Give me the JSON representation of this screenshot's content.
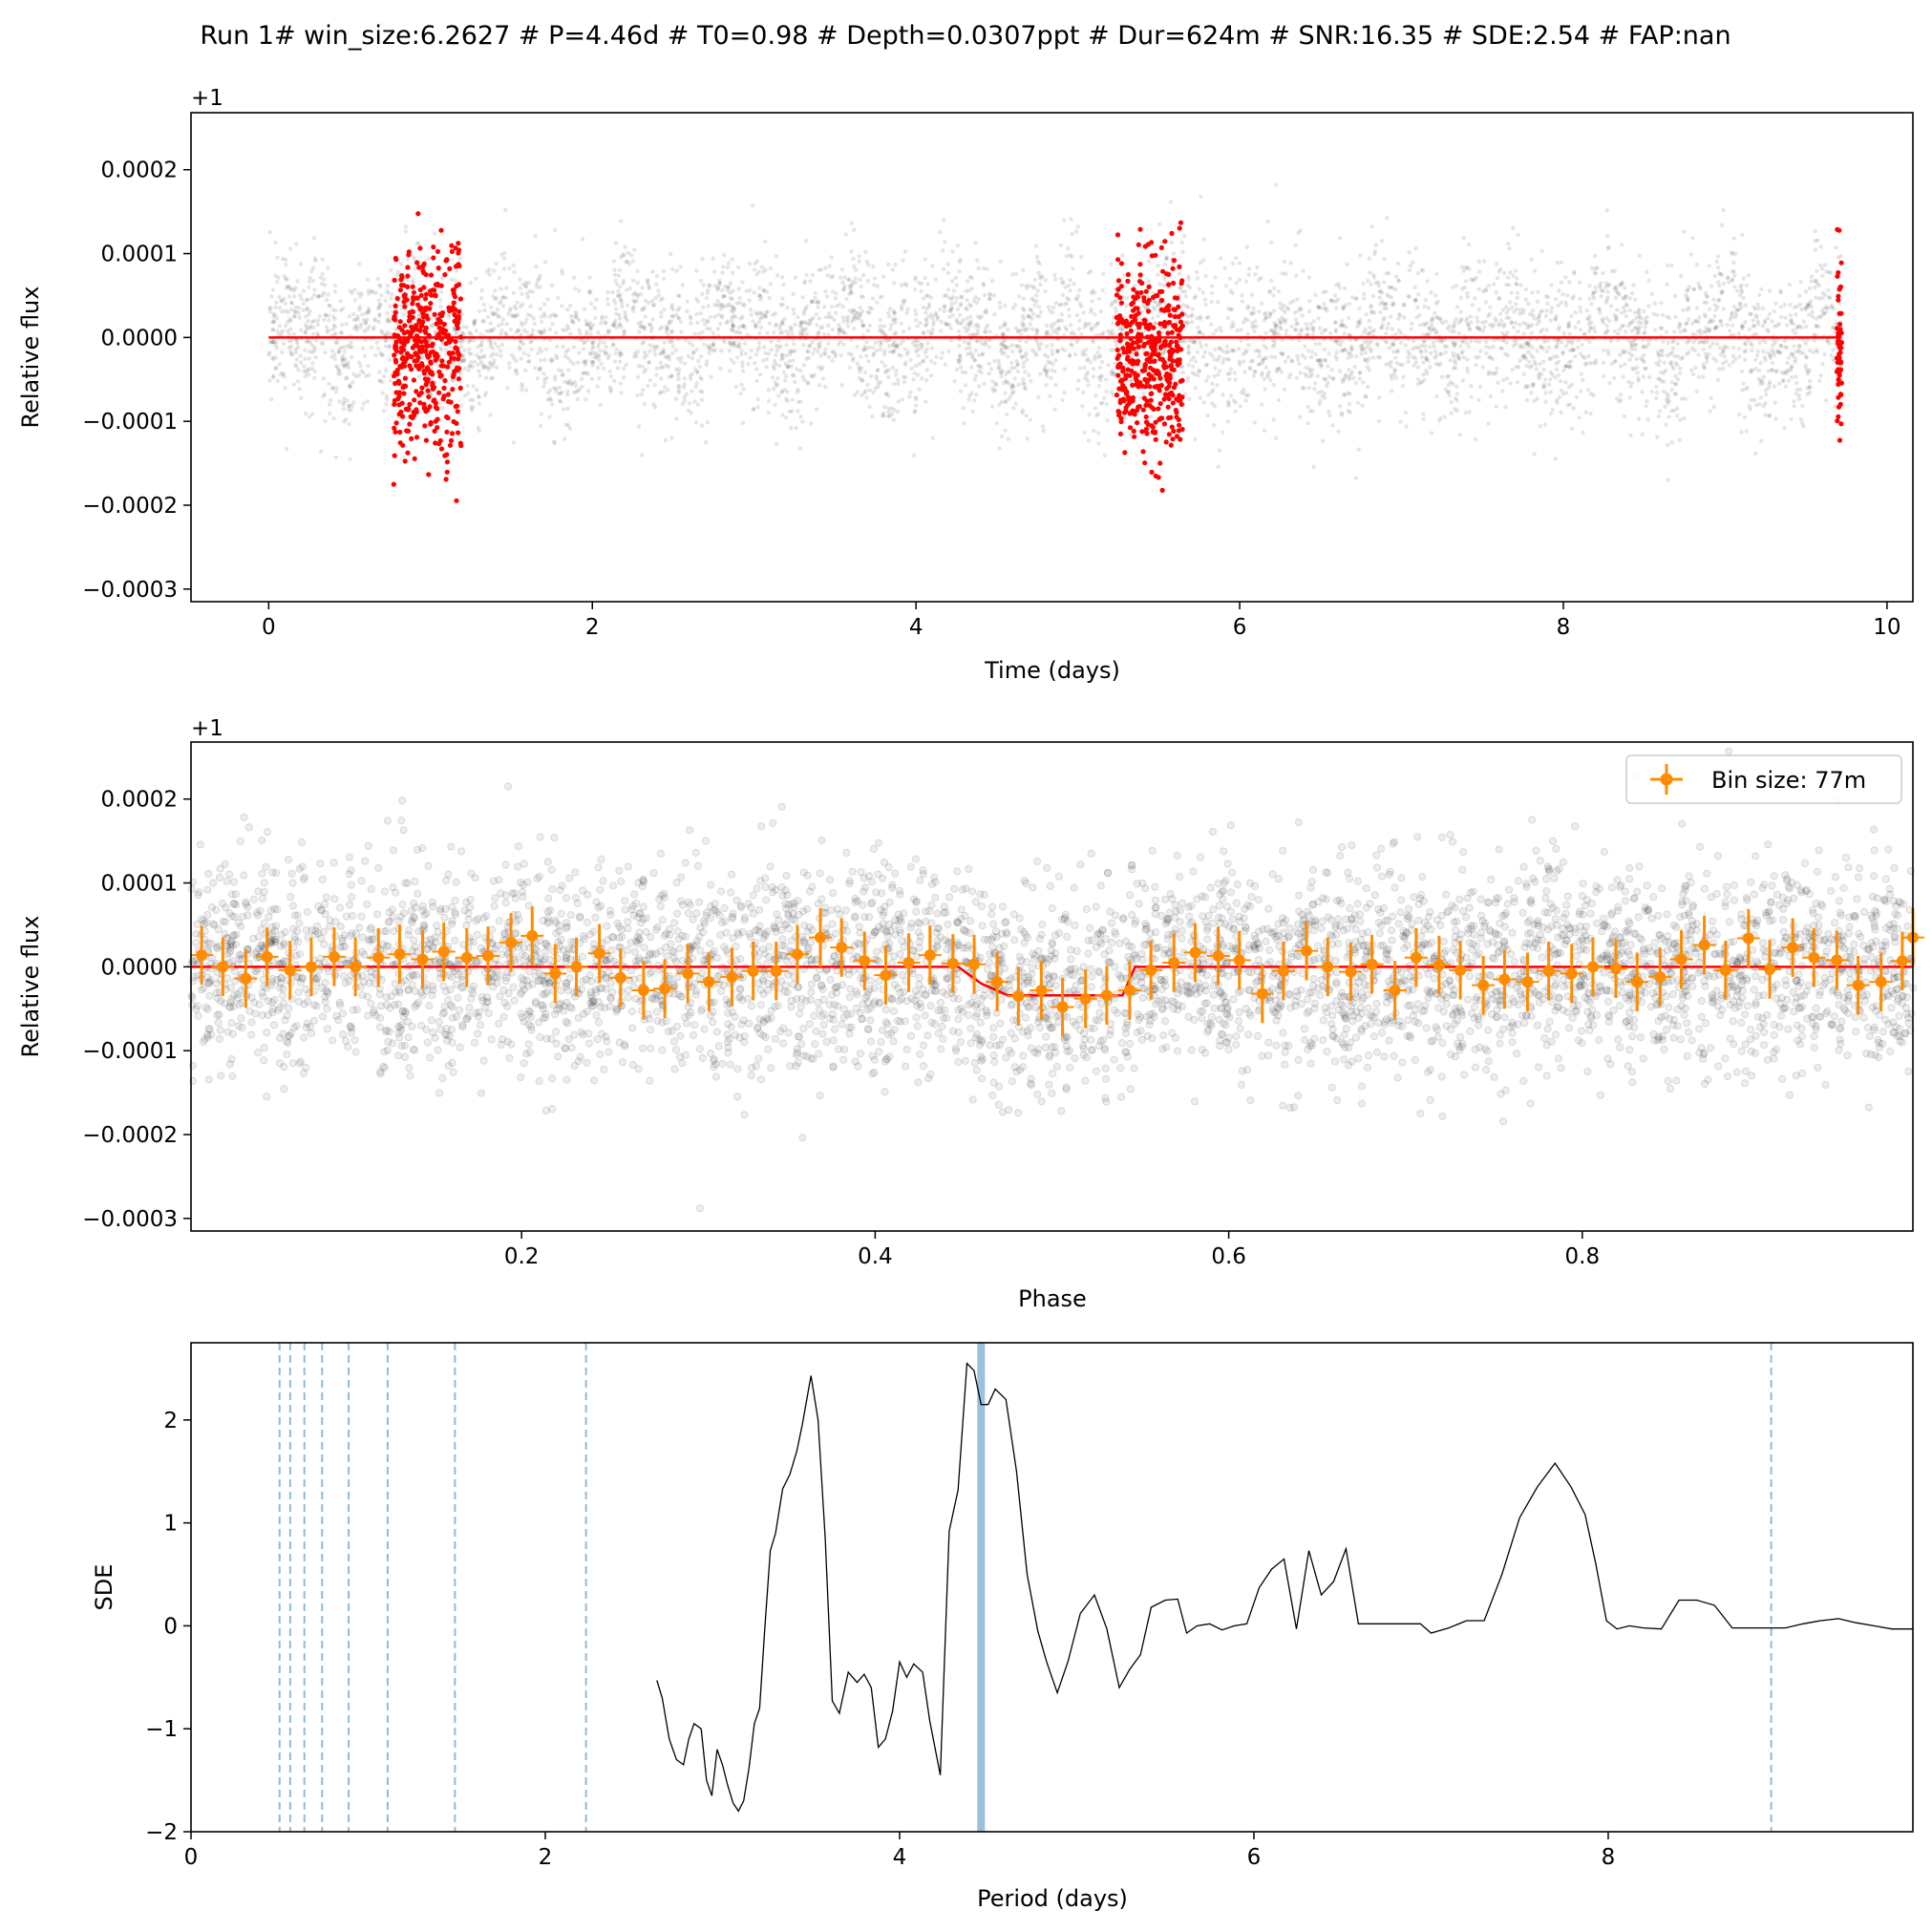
{
  "title": "Run 1# win_size:6.2627 # P=4.46d # T0=0.98 # Depth=0.0307ppt # Dur=624m # SNR:16.35 # SDE:2.54 # FAP:nan",
  "chart_data": [
    {
      "type": "scatter",
      "name": "light-curve",
      "xlabel": "Time (days)",
      "ylabel": "Relative flux",
      "offset_label": "+1",
      "xlim": [
        -0.48,
        10.16
      ],
      "ylim": [
        -0.000315,
        0.000268
      ],
      "xticks": [
        0,
        2,
        4,
        6,
        8,
        10
      ],
      "yticks": [
        0.0002,
        0.0001,
        0.0,
        -0.0001,
        -0.0002,
        -0.0003
      ],
      "ytick_labels": [
        "0.0002",
        "0.0001",
        "0.0000",
        "−0.0001",
        "−0.0002",
        "−0.0003"
      ],
      "data_range": [
        0.0,
        9.72
      ],
      "noise_sigma": 6e-05,
      "in_transit_windows": [
        [
          0.77,
          1.19
        ],
        [
          5.24,
          5.65
        ],
        [
          9.69,
          9.72
        ]
      ],
      "model": [
        [
          0.0,
          0.0
        ],
        [
          9.72,
          0.0
        ]
      ],
      "colors": {
        "background_points": "#000000",
        "transit_points": "#ff0000",
        "model": "#ff0000"
      }
    },
    {
      "type": "scatter",
      "name": "phase-folded",
      "xlabel": "Phase",
      "ylabel": "Relative flux",
      "offset_label": "+1",
      "xlim": [
        0.013,
        0.987
      ],
      "ylim": [
        -0.000315,
        0.000268
      ],
      "xticks": [
        0.2,
        0.4,
        0.6,
        0.8
      ],
      "yticks": [
        0.0002,
        0.0001,
        0.0,
        -0.0001,
        -0.0002,
        -0.0003
      ],
      "ytick_labels": [
        "0.0002",
        "0.0001",
        "0.0000",
        "−0.0001",
        "−0.0002",
        "−0.0003"
      ],
      "legend": {
        "label": "Bin size: 77m",
        "position": "top-right"
      },
      "model": [
        [
          0.013,
          0.0
        ],
        [
          0.447,
          0.0
        ],
        [
          0.46,
          -2e-05
        ],
        [
          0.475,
          -3.4e-05
        ],
        [
          0.54,
          -3.4e-05
        ],
        [
          0.547,
          0.0
        ],
        [
          0.987,
          0.0
        ]
      ],
      "binned_error": 3.5e-05,
      "binned": [
        [
          0.019,
          1.4e-05
        ],
        [
          0.031,
          0.0
        ],
        [
          0.044,
          -1.4e-05
        ],
        [
          0.056,
          1.2e-05
        ],
        [
          0.069,
          -4e-06
        ],
        [
          0.081,
          0.0
        ],
        [
          0.094,
          1.2e-05
        ],
        [
          0.106,
          0.0
        ],
        [
          0.119,
          1.1e-05
        ],
        [
          0.131,
          1.5e-05
        ],
        [
          0.144,
          9e-06
        ],
        [
          0.156,
          1.8e-05
        ],
        [
          0.169,
          1.1e-05
        ],
        [
          0.181,
          1.3e-05
        ],
        [
          0.194,
          2.9e-05
        ],
        [
          0.206,
          3.7e-05
        ],
        [
          0.219,
          -8e-06
        ],
        [
          0.231,
          0.0
        ],
        [
          0.244,
          1.6e-05
        ],
        [
          0.256,
          -1.3e-05
        ],
        [
          0.269,
          -2.8e-05
        ],
        [
          0.281,
          -2.6e-05
        ],
        [
          0.294,
          -8e-06
        ],
        [
          0.306,
          -1.8e-05
        ],
        [
          0.319,
          -1.2e-05
        ],
        [
          0.331,
          -5e-06
        ],
        [
          0.344,
          -5e-06
        ],
        [
          0.356,
          1.5e-05
        ],
        [
          0.369,
          3.5e-05
        ],
        [
          0.381,
          2.3e-05
        ],
        [
          0.394,
          7e-06
        ],
        [
          0.406,
          -1e-05
        ],
        [
          0.419,
          5e-06
        ],
        [
          0.431,
          1.4e-05
        ],
        [
          0.444,
          4e-06
        ],
        [
          0.456,
          3e-06
        ],
        [
          0.469,
          -1.8e-05
        ],
        [
          0.481,
          -3.5e-05
        ],
        [
          0.494,
          -2.8e-05
        ],
        [
          0.506,
          -4.8e-05
        ],
        [
          0.519,
          -3.8e-05
        ],
        [
          0.531,
          -3.4e-05
        ],
        [
          0.544,
          -2.8e-05
        ],
        [
          0.556,
          -4e-06
        ],
        [
          0.569,
          5e-06
        ],
        [
          0.581,
          1.7e-05
        ],
        [
          0.594,
          1.3e-05
        ],
        [
          0.606,
          8e-06
        ],
        [
          0.619,
          -3.2e-05
        ],
        [
          0.631,
          -5e-06
        ],
        [
          0.644,
          1.9e-05
        ],
        [
          0.656,
          0.0
        ],
        [
          0.669,
          -6e-06
        ],
        [
          0.681,
          3e-06
        ],
        [
          0.694,
          -2.8e-05
        ],
        [
          0.706,
          1.1e-05
        ],
        [
          0.719,
          2e-06
        ],
        [
          0.731,
          -4e-06
        ],
        [
          0.744,
          -2.2e-05
        ],
        [
          0.756,
          -1.5e-05
        ],
        [
          0.769,
          -1.8e-05
        ],
        [
          0.781,
          -5e-06
        ],
        [
          0.794,
          -8e-06
        ],
        [
          0.806,
          0.0
        ],
        [
          0.819,
          -2e-06
        ],
        [
          0.831,
          -1.8e-05
        ],
        [
          0.844,
          -1.2e-05
        ],
        [
          0.856,
          9e-06
        ],
        [
          0.869,
          2.6e-05
        ],
        [
          0.881,
          -4e-06
        ],
        [
          0.894,
          3.4e-05
        ],
        [
          0.906,
          -3e-06
        ],
        [
          0.919,
          2.3e-05
        ],
        [
          0.931,
          1.1e-05
        ],
        [
          0.944,
          8e-06
        ],
        [
          0.956,
          -2.2e-05
        ],
        [
          0.969,
          -1.8e-05
        ],
        [
          0.981,
          7e-06
        ],
        [
          0.987,
          3.5e-05
        ]
      ],
      "colors": {
        "points": "#000000",
        "binned": "#ff8c00",
        "model": "#ff0000"
      }
    },
    {
      "type": "line",
      "name": "periodogram",
      "xlabel": "Period (days)",
      "ylabel": "SDE",
      "xlim": [
        0.0,
        9.72
      ],
      "ylim": [
        -2.0,
        2.75
      ],
      "xticks": [
        0,
        2,
        4,
        6,
        8
      ],
      "yticks": [
        2,
        1,
        0,
        -1,
        -2
      ],
      "ytick_labels": [
        "2",
        "1",
        "0",
        "−1",
        "−2"
      ],
      "best_period": 4.46,
      "harmonics": [
        0.5,
        0.56,
        0.64,
        0.74,
        0.89,
        1.11,
        1.49,
        2.23,
        8.92
      ],
      "colors": {
        "line": "#000000",
        "period_marker": "#1f77b4"
      },
      "series": [
        {
          "x": [
            2.63,
            2.66,
            2.7,
            2.74,
            2.78,
            2.81,
            2.84,
            2.88,
            2.91,
            2.94,
            2.97,
            3.0,
            3.03,
            3.06,
            3.09,
            3.12,
            3.15,
            3.18,
            3.21,
            3.24,
            3.27,
            3.3,
            3.34,
            3.38,
            3.42,
            3.45,
            3.5,
            3.54,
            3.58,
            3.62,
            3.66,
            3.71,
            3.76,
            3.8,
            3.84,
            3.88,
            3.92,
            3.96,
            4.0,
            4.04,
            4.08,
            4.13,
            4.17,
            4.23,
            4.28,
            4.33,
            4.38,
            4.42,
            4.46,
            4.5,
            4.54,
            4.6,
            4.66,
            4.72,
            4.78,
            4.83,
            4.89,
            4.95,
            5.02,
            5.1,
            5.17,
            5.24,
            5.3,
            5.36,
            5.42,
            5.5,
            5.57,
            5.62,
            5.68,
            5.75,
            5.82,
            5.89,
            5.96,
            6.03,
            6.1,
            6.17,
            6.24,
            6.31,
            6.38,
            6.45,
            6.52,
            6.59,
            6.66,
            6.73,
            6.8,
            6.87,
            6.94,
            7.0,
            7.1,
            7.2,
            7.3,
            7.4,
            7.5,
            7.6,
            7.7,
            7.79,
            7.87,
            7.93,
            7.99,
            8.05,
            8.12,
            8.2,
            8.3,
            8.4,
            8.5,
            8.6,
            8.7,
            8.8,
            8.92,
            9.0,
            9.1,
            9.2,
            9.3,
            9.4,
            9.5,
            9.6,
            9.72
          ],
          "y": [
            -0.53,
            -0.7,
            -1.1,
            -1.3,
            -1.35,
            -1.1,
            -0.95,
            -1.0,
            -1.5,
            -1.65,
            -1.2,
            -1.35,
            -1.55,
            -1.72,
            -1.8,
            -1.7,
            -1.38,
            -0.95,
            -0.8,
            0.0,
            0.73,
            0.9,
            1.33,
            1.47,
            1.7,
            1.95,
            2.43,
            2.0,
            0.85,
            -0.73,
            -0.85,
            -0.45,
            -0.55,
            -0.47,
            -0.6,
            -1.18,
            -1.1,
            -0.83,
            -0.35,
            -0.5,
            -0.37,
            -0.45,
            -0.92,
            -1.45,
            0.92,
            1.32,
            2.55,
            2.48,
            2.15,
            2.15,
            2.3,
            2.2,
            1.5,
            0.5,
            -0.05,
            -0.35,
            -0.65,
            -0.35,
            0.12,
            0.3,
            -0.03,
            -0.6,
            -0.42,
            -0.28,
            0.18,
            0.25,
            0.26,
            -0.07,
            0.0,
            0.02,
            -0.04,
            0.0,
            0.02,
            0.37,
            0.55,
            0.65,
            -0.03,
            0.73,
            0.3,
            0.43,
            0.75,
            0.02,
            0.02,
            0.02,
            0.02,
            0.02,
            0.02,
            -0.07,
            -0.02,
            0.05,
            0.05,
            0.5,
            1.05,
            1.35,
            1.58,
            1.35,
            1.08,
            0.6,
            0.05,
            -0.03,
            0.0,
            -0.02,
            -0.03,
            0.25,
            0.25,
            0.2,
            -0.02,
            -0.02,
            -0.02,
            -0.02,
            0.02,
            0.05,
            0.07,
            0.03,
            0.0,
            -0.03,
            -0.03
          ]
        }
      ]
    }
  ]
}
